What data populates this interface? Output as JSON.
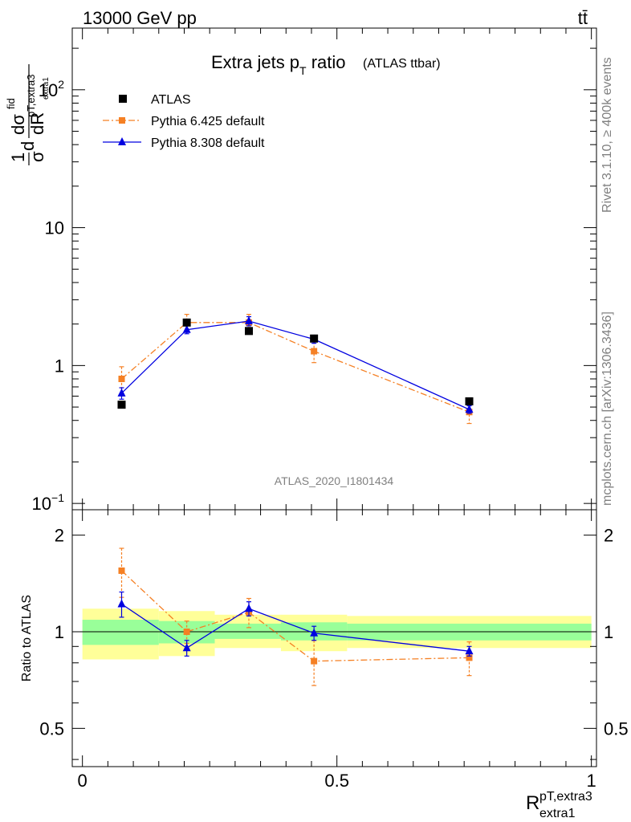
{
  "header": {
    "energy": "13000 GeV pp",
    "process": "tt̄"
  },
  "side": {
    "rivet": "Rivet 3.1.10, ≥ 400k events",
    "mcplots": "mcplots.cern.ch [arXiv:1306.3436]"
  },
  "chart_data": [
    {
      "type": "scatter",
      "title_main": "Extra jets p",
      "title_sub": "T",
      "title_rest": " ratio",
      "title_small": "(ATLAS ttbar)",
      "watermark": "ATLAS_2020_I1801434",
      "ylabel_parts": {
        "a": "1",
        "b": "σ",
        "c": "d",
        "d": "dσ",
        "e": "fid",
        "f": "dR",
        "g": "pT,extra3",
        "h": "extra1"
      },
      "yscale": "log",
      "ylim": [
        0.09,
        280
      ],
      "yticks": [
        {
          "value": 100,
          "base": "10",
          "exp": "2"
        },
        {
          "value": 10,
          "base": "10",
          "exp": ""
        },
        {
          "value": 1,
          "base": "1",
          "exp": ""
        },
        {
          "value": 0.1,
          "base": "10",
          "exp": "−1"
        }
      ],
      "legend": {
        "placement": "top-left"
      },
      "series": [
        {
          "name": "ATLAS",
          "color": "#000000",
          "marker": "square",
          "x": [
            0.077,
            0.205,
            0.327,
            0.455,
            0.76
          ],
          "y": [
            0.52,
            2.05,
            1.78,
            1.57,
            0.55
          ]
        },
        {
          "name": "Pythia 6.425 default",
          "color": "#f58024",
          "marker": "square",
          "line": "dashdot",
          "x": [
            0.077,
            0.205,
            0.327,
            0.455,
            0.76
          ],
          "y": [
            0.8,
            2.05,
            2.05,
            1.27,
            0.46
          ],
          "err": [
            0.18,
            0.3,
            0.3,
            0.22,
            0.08
          ]
        },
        {
          "name": "Pythia 8.308 default",
          "color": "#0000e0",
          "marker": "triangle",
          "line": "solid",
          "x": [
            0.077,
            0.205,
            0.327,
            0.455,
            0.76
          ],
          "y": [
            0.63,
            1.82,
            2.1,
            1.55,
            0.48
          ],
          "err": [
            0.06,
            0.12,
            0.16,
            0.1,
            0.03
          ]
        }
      ]
    },
    {
      "type": "scatter",
      "ylabel": "Ratio to ATLAS",
      "xlabel_main": "R",
      "xlabel_sup": "pT,extra3",
      "xlabel_sub": "extra1",
      "xlim": [
        -0.02,
        1.01
      ],
      "ylim": [
        0.38,
        2.4
      ],
      "yscale": "log",
      "xticks": [
        {
          "value": 0,
          "label": "0"
        },
        {
          "value": 0.5,
          "label": "0.5"
        },
        {
          "value": 1,
          "label": "1"
        }
      ],
      "yticks": [
        {
          "value": 2,
          "label": "2"
        },
        {
          "value": 1,
          "label": "1"
        },
        {
          "value": 0.5,
          "label": "0.5"
        }
      ],
      "bands": [
        {
          "x0": 0.0,
          "x1": 0.15,
          "y_low": 0.82,
          "y_high": 1.18,
          "in_low": 0.91,
          "in_high": 1.09
        },
        {
          "x0": 0.15,
          "x1": 0.26,
          "y_low": 0.84,
          "y_high": 1.16,
          "in_low": 0.92,
          "in_high": 1.08
        },
        {
          "x0": 0.26,
          "x1": 0.39,
          "y_low": 0.89,
          "y_high": 1.13,
          "in_low": 0.95,
          "in_high": 1.06
        },
        {
          "x0": 0.39,
          "x1": 0.52,
          "y_low": 0.87,
          "y_high": 1.13,
          "in_low": 0.94,
          "in_high": 1.07
        },
        {
          "x0": 0.52,
          "x1": 1.0,
          "y_low": 0.89,
          "y_high": 1.12,
          "in_low": 0.94,
          "in_high": 1.06
        }
      ],
      "series": [
        {
          "name": "Pythia 6.425 default",
          "color": "#f58024",
          "marker": "square",
          "line": "dashdot",
          "x": [
            0.077,
            0.205,
            0.327,
            0.455,
            0.76
          ],
          "y": [
            1.55,
            1.0,
            1.15,
            0.81,
            0.83
          ],
          "err": [
            0.27,
            0.08,
            0.12,
            0.13,
            0.1
          ]
        },
        {
          "name": "Pythia 8.308 default",
          "color": "#0000e0",
          "marker": "triangle",
          "line": "solid",
          "x": [
            0.077,
            0.205,
            0.327,
            0.455,
            0.76
          ],
          "y": [
            1.22,
            0.89,
            1.18,
            0.99,
            0.87
          ],
          "err": [
            0.11,
            0.05,
            0.06,
            0.05,
            0.03
          ]
        }
      ]
    }
  ]
}
